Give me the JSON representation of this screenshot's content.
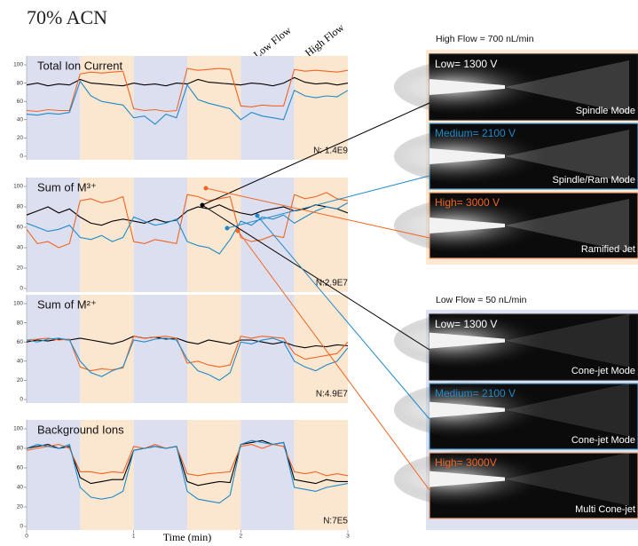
{
  "title": "70% ACN",
  "flow_labels": [
    "Low Flow",
    "High Flow"
  ],
  "chart_data": [
    {
      "type": "line",
      "title": "Total Ion Current",
      "annotation": "N: 1.4E9",
      "x": [
        0,
        0.1,
        0.2,
        0.3,
        0.4,
        0.5,
        0.6,
        0.7,
        0.8,
        0.9,
        1,
        1.1,
        1.2,
        1.3,
        1.4,
        1.5,
        1.6,
        1.7,
        1.8,
        1.9,
        2,
        2.1,
        2.2,
        2.3,
        2.4,
        2.5,
        2.6,
        2.7,
        2.8,
        2.9,
        3
      ],
      "series": [
        {
          "color": "#000000",
          "values": [
            78,
            80,
            77,
            79,
            78,
            84,
            80,
            79,
            78,
            77,
            80,
            78,
            79,
            77,
            80,
            79,
            84,
            81,
            80,
            79,
            78,
            80,
            79,
            77,
            80,
            86,
            81,
            79,
            80,
            78,
            80
          ]
        },
        {
          "color": "#f26522",
          "values": [
            50,
            49,
            51,
            50,
            50,
            90,
            92,
            91,
            92,
            93,
            52,
            50,
            51,
            49,
            50,
            96,
            94,
            95,
            96,
            95,
            55,
            54,
            56,
            55,
            55,
            95,
            93,
            94,
            93,
            92,
            94
          ]
        },
        {
          "color": "#1f8ac9",
          "values": [
            46,
            45,
            47,
            46,
            48,
            82,
            66,
            60,
            58,
            56,
            42,
            44,
            35,
            46,
            42,
            78,
            62,
            58,
            55,
            52,
            40,
            48,
            44,
            42,
            40,
            72,
            66,
            64,
            66,
            65,
            72
          ]
        }
      ],
      "xlim": [
        0,
        3
      ],
      "ylim": [
        0,
        100
      ],
      "yticks": [
        0,
        20,
        40,
        60,
        80,
        100
      ],
      "bands": [
        {
          "x": [
            0,
            0.5
          ],
          "color": "#dcdff0"
        },
        {
          "x": [
            0.5,
            1
          ],
          "color": "#fbe6cf"
        },
        {
          "x": [
            1,
            1.5
          ],
          "color": "#dcdff0"
        },
        {
          "x": [
            1.5,
            2
          ],
          "color": "#fbe6cf"
        },
        {
          "x": [
            2,
            2.5
          ],
          "color": "#dcdff0"
        },
        {
          "x": [
            2.5,
            3
          ],
          "color": "#fbe6cf"
        }
      ]
    },
    {
      "type": "line",
      "title": "Sum of M³⁺",
      "annotation": "N:2.9E7",
      "x": [
        0,
        0.1,
        0.2,
        0.3,
        0.4,
        0.5,
        0.6,
        0.7,
        0.8,
        0.9,
        1,
        1.1,
        1.2,
        1.3,
        1.4,
        1.5,
        1.6,
        1.7,
        1.8,
        1.9,
        2,
        2.1,
        2.2,
        2.3,
        2.4,
        2.5,
        2.6,
        2.7,
        2.8,
        2.9,
        3
      ],
      "series": [
        {
          "color": "#000000",
          "values": [
            72,
            76,
            80,
            74,
            78,
            70,
            64,
            62,
            66,
            68,
            66,
            64,
            68,
            65,
            67,
            76,
            80,
            78,
            82,
            77,
            74,
            72,
            76,
            78,
            80,
            76,
            78,
            82,
            80,
            78,
            74
          ]
        },
        {
          "color": "#f26522",
          "values": [
            58,
            44,
            46,
            40,
            44,
            86,
            88,
            84,
            86,
            90,
            46,
            44,
            48,
            46,
            44,
            92,
            90,
            86,
            88,
            90,
            50,
            46,
            48,
            52,
            50,
            92,
            88,
            90,
            94,
            88,
            86
          ]
        },
        {
          "color": "#1f8ac9",
          "values": [
            64,
            60,
            56,
            58,
            62,
            50,
            48,
            52,
            46,
            50,
            70,
            66,
            62,
            64,
            68,
            46,
            42,
            40,
            34,
            48,
            66,
            62,
            70,
            68,
            72,
            64,
            70,
            76,
            80,
            78,
            84
          ]
        }
      ],
      "xlim": [
        0,
        3
      ],
      "ylim": [
        0,
        100
      ],
      "yticks": [
        0,
        20,
        40,
        60,
        80,
        100
      ],
      "bands": [
        {
          "x": [
            0,
            0.5
          ],
          "color": "#dcdff0"
        },
        {
          "x": [
            0.5,
            1
          ],
          "color": "#fbe6cf"
        },
        {
          "x": [
            1,
            1.5
          ],
          "color": "#dcdff0"
        },
        {
          "x": [
            1.5,
            2
          ],
          "color": "#fbe6cf"
        },
        {
          "x": [
            2,
            2.5
          ],
          "color": "#dcdff0"
        },
        {
          "x": [
            2.5,
            3
          ],
          "color": "#fbe6cf"
        }
      ]
    },
    {
      "type": "line",
      "title": "Sum of M²⁺",
      "annotation": "N:4.9E7",
      "x": [
        0,
        0.1,
        0.2,
        0.3,
        0.4,
        0.5,
        0.6,
        0.7,
        0.8,
        0.9,
        1,
        1.1,
        1.2,
        1.3,
        1.4,
        1.5,
        1.6,
        1.7,
        1.8,
        1.9,
        2,
        2.1,
        2.2,
        2.3,
        2.4,
        2.5,
        2.6,
        2.7,
        2.8,
        2.9,
        3
      ],
      "series": [
        {
          "color": "#000000",
          "values": [
            60,
            62,
            61,
            63,
            62,
            64,
            62,
            60,
            58,
            61,
            66,
            64,
            65,
            63,
            64,
            60,
            58,
            62,
            60,
            58,
            62,
            62,
            60,
            58,
            60,
            56,
            54,
            56,
            55,
            57,
            56
          ]
        },
        {
          "color": "#f26522",
          "values": [
            62,
            63,
            64,
            62,
            63,
            34,
            30,
            32,
            31,
            33,
            66,
            64,
            65,
            66,
            64,
            38,
            40,
            36,
            34,
            36,
            66,
            64,
            66,
            65,
            64,
            48,
            42,
            44,
            46,
            48,
            60
          ]
        },
        {
          "color": "#1f8ac9",
          "values": [
            62,
            60,
            63,
            64,
            62,
            40,
            28,
            24,
            30,
            34,
            62,
            60,
            63,
            64,
            62,
            42,
            30,
            26,
            20,
            28,
            60,
            58,
            62,
            64,
            60,
            40,
            34,
            30,
            36,
            40,
            54
          ]
        }
      ],
      "xlim": [
        0,
        3
      ],
      "ylim": [
        0,
        100
      ],
      "yticks": [
        0,
        20,
        40,
        60,
        80,
        100
      ],
      "bands": [
        {
          "x": [
            0,
            0.5
          ],
          "color": "#dcdff0"
        },
        {
          "x": [
            0.5,
            1
          ],
          "color": "#fbe6cf"
        },
        {
          "x": [
            1,
            1.5
          ],
          "color": "#dcdff0"
        },
        {
          "x": [
            1.5,
            2
          ],
          "color": "#fbe6cf"
        },
        {
          "x": [
            2,
            2.5
          ],
          "color": "#dcdff0"
        },
        {
          "x": [
            2.5,
            3
          ],
          "color": "#fbe6cf"
        }
      ]
    },
    {
      "type": "line",
      "title": "Background Ions",
      "annotation": "N:7E5",
      "xlabel": "Time (min)",
      "x": [
        0,
        0.1,
        0.2,
        0.3,
        0.4,
        0.5,
        0.6,
        0.7,
        0.8,
        0.9,
        1,
        1.1,
        1.2,
        1.3,
        1.4,
        1.5,
        1.6,
        1.7,
        1.8,
        1.9,
        2,
        2.1,
        2.2,
        2.3,
        2.4,
        2.5,
        2.6,
        2.7,
        2.8,
        2.9,
        3
      ],
      "series": [
        {
          "color": "#000000",
          "values": [
            80,
            82,
            84,
            80,
            82,
            50,
            44,
            46,
            48,
            48,
            78,
            80,
            82,
            80,
            82,
            46,
            42,
            44,
            46,
            45,
            84,
            86,
            88,
            84,
            86,
            48,
            46,
            44,
            48,
            46,
            46
          ]
        },
        {
          "color": "#f26522",
          "values": [
            78,
            80,
            82,
            84,
            80,
            56,
            56,
            54,
            56,
            55,
            82,
            80,
            84,
            80,
            82,
            54,
            52,
            54,
            55,
            56,
            82,
            84,
            80,
            84,
            82,
            56,
            54,
            56,
            52,
            54,
            52
          ]
        },
        {
          "color": "#1f8ac9",
          "values": [
            80,
            84,
            82,
            80,
            84,
            40,
            30,
            28,
            30,
            36,
            78,
            80,
            82,
            80,
            82,
            36,
            28,
            26,
            24,
            32,
            84,
            88,
            86,
            84,
            86,
            40,
            38,
            36,
            40,
            42,
            44
          ]
        }
      ],
      "xlim": [
        0,
        3
      ],
      "ylim": [
        0,
        100
      ],
      "yticks": [
        0,
        20,
        40,
        60,
        80,
        100
      ],
      "xticks": [
        0,
        1,
        2,
        3
      ],
      "bands": [
        {
          "x": [
            0,
            0.5
          ],
          "color": "#dcdff0"
        },
        {
          "x": [
            0.5,
            1
          ],
          "color": "#fbe6cf"
        },
        {
          "x": [
            1,
            1.5
          ],
          "color": "#dcdff0"
        },
        {
          "x": [
            1.5,
            2
          ],
          "color": "#fbe6cf"
        },
        {
          "x": [
            2,
            2.5
          ],
          "color": "#dcdff0"
        },
        {
          "x": [
            2.5,
            3
          ],
          "color": "#fbe6cf"
        }
      ]
    }
  ],
  "image_groups": [
    {
      "title": "High Flow = 700 nL/min",
      "images": [
        {
          "voltage": "Low= 1300 V",
          "mode": "Spindle Mode"
        },
        {
          "voltage": "Medium= 2100 V",
          "mode": "Spindle/Ram Mode"
        },
        {
          "voltage": "High= 3000 V",
          "mode": "Ramified Jet"
        }
      ]
    },
    {
      "title": "Low Flow = 50 nL/min",
      "images": [
        {
          "voltage": "Low= 1300 V",
          "mode": "Cone-jet Mode"
        },
        {
          "voltage": "Medium= 2100 V",
          "mode": "Cone-jet Mode"
        },
        {
          "voltage": "High= 3000V",
          "mode": "Multi Cone-jet"
        }
      ]
    }
  ]
}
